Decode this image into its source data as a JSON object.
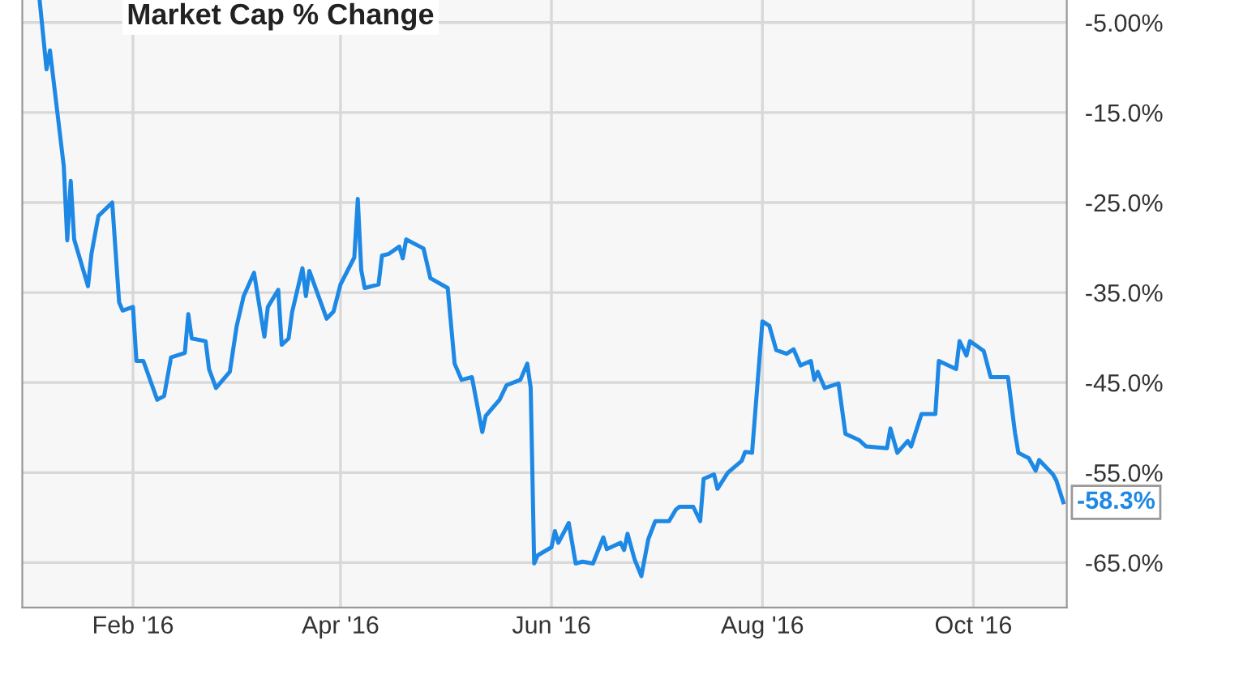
{
  "chart_data": {
    "type": "line",
    "title": "Market Cap % Change",
    "x": [
      "2016-01-05",
      "2016-01-06",
      "2016-01-07",
      "2016-01-08",
      "2016-01-12",
      "2016-01-13",
      "2016-01-14",
      "2016-01-15",
      "2016-01-19",
      "2016-01-20",
      "2016-01-22",
      "2016-01-26",
      "2016-01-28",
      "2016-01-29",
      "2016-02-01",
      "2016-02-02",
      "2016-02-04",
      "2016-02-08",
      "2016-02-10",
      "2016-02-12",
      "2016-02-16",
      "2016-02-17",
      "2016-02-18",
      "2016-02-22",
      "2016-02-23",
      "2016-02-25",
      "2016-02-29",
      "2016-03-02",
      "2016-03-04",
      "2016-03-07",
      "2016-03-10",
      "2016-03-11",
      "2016-03-14",
      "2016-03-15",
      "2016-03-17",
      "2016-03-18",
      "2016-03-21",
      "2016-03-22",
      "2016-03-23",
      "2016-03-28",
      "2016-03-30",
      "2016-04-01",
      "2016-04-05",
      "2016-04-06",
      "2016-04-07",
      "2016-04-08",
      "2016-04-12",
      "2016-04-13",
      "2016-04-15",
      "2016-04-18",
      "2016-04-19",
      "2016-04-20",
      "2016-04-25",
      "2016-04-27",
      "2016-05-02",
      "2016-05-04",
      "2016-05-06",
      "2016-05-09",
      "2016-05-12",
      "2016-05-13",
      "2016-05-17",
      "2016-05-19",
      "2016-05-23",
      "2016-05-25",
      "2016-05-26",
      "2016-05-27",
      "2016-05-28",
      "2016-06-01",
      "2016-06-02",
      "2016-06-03",
      "2016-06-06",
      "2016-06-08",
      "2016-06-10",
      "2016-06-13",
      "2016-06-16",
      "2016-06-17",
      "2016-06-21",
      "2016-06-22",
      "2016-06-23",
      "2016-06-25",
      "2016-06-27",
      "2016-06-29",
      "2016-07-01",
      "2016-07-05",
      "2016-07-07",
      "2016-07-08",
      "2016-07-12",
      "2016-07-14",
      "2016-07-15",
      "2016-07-18",
      "2016-07-19",
      "2016-07-22",
      "2016-07-26",
      "2016-07-27",
      "2016-07-29",
      "2016-08-01",
      "2016-08-03",
      "2016-08-05",
      "2016-08-08",
      "2016-08-10",
      "2016-08-12",
      "2016-08-15",
      "2016-08-16",
      "2016-08-17",
      "2016-08-19",
      "2016-08-23",
      "2016-08-25",
      "2016-08-29",
      "2016-08-31",
      "2016-09-06",
      "2016-09-07",
      "2016-09-09",
      "2016-09-12",
      "2016-09-13",
      "2016-09-16",
      "2016-09-20",
      "2016-09-21",
      "2016-09-26",
      "2016-09-27",
      "2016-09-29",
      "2016-09-30",
      "2016-10-04",
      "2016-10-06",
      "2016-10-11",
      "2016-10-13",
      "2016-10-14",
      "2016-10-17",
      "2016-10-19",
      "2016-10-20",
      "2016-10-24",
      "2016-10-25",
      "2016-10-27"
    ],
    "series": [
      {
        "color": "#1e88e5",
        "values": [
          -2.5,
          -6.3,
          -10.2,
          -8.1,
          -21.0,
          -29.2,
          -22.6,
          -29.1,
          -34.3,
          -30.7,
          -26.5,
          -25.0,
          -36.1,
          -37.0,
          -36.6,
          -42.6,
          -42.6,
          -46.9,
          -46.5,
          -42.2,
          -41.7,
          -37.4,
          -40.1,
          -40.4,
          -43.5,
          -45.6,
          -43.8,
          -38.7,
          -35.4,
          -32.8,
          -39.9,
          -36.6,
          -34.7,
          -40.8,
          -40.1,
          -37.2,
          -32.3,
          -35.4,
          -32.6,
          -37.9,
          -37.1,
          -34.1,
          -31.1,
          -24.6,
          -32.5,
          -34.5,
          -34.1,
          -30.9,
          -30.7,
          -29.9,
          -31.2,
          -29.1,
          -30.1,
          -33.4,
          -34.5,
          -42.9,
          -44.7,
          -44.4,
          -50.5,
          -48.7,
          -46.9,
          -45.3,
          -44.7,
          -42.9,
          -45.6,
          -65.1,
          -64.2,
          -63.3,
          -61.5,
          -62.8,
          -60.6,
          -65.1,
          -64.9,
          -65.1,
          -62.2,
          -63.5,
          -62.8,
          -63.6,
          -61.8,
          -64.6,
          -66.5,
          -62.4,
          -60.4,
          -60.4,
          -59.1,
          -58.8,
          -58.8,
          -60.4,
          -55.7,
          -55.2,
          -56.8,
          -55.0,
          -53.7,
          -52.7,
          -52.8,
          -38.2,
          -38.7,
          -41.4,
          -41.8,
          -41.3,
          -43.1,
          -42.6,
          -44.7,
          -43.8,
          -45.6,
          -45.1,
          -50.7,
          -51.4,
          -52.1,
          -52.3,
          -50.1,
          -52.8,
          -51.5,
          -52.1,
          -48.5,
          -48.5,
          -42.6,
          -43.5,
          -40.4,
          -42.0,
          -40.4,
          -41.5,
          -44.4,
          -44.4,
          -50.5,
          -52.8,
          -53.4,
          -54.8,
          -53.6,
          -55.2,
          -55.9,
          -58.3
        ],
        "value_labels": [
          null,
          null,
          null,
          null,
          null,
          null,
          null,
          null,
          null,
          null,
          null,
          null,
          null,
          null,
          null,
          null,
          null,
          null,
          null,
          null,
          null,
          null,
          null,
          null,
          null,
          null,
          null,
          null,
          null,
          null,
          null,
          null,
          null,
          null,
          null,
          null,
          null,
          null,
          null,
          null,
          null,
          null,
          null,
          null,
          null,
          null,
          null,
          null,
          null,
          null,
          null,
          null,
          null,
          null,
          null,
          null,
          null,
          null,
          null,
          null,
          null,
          null,
          null,
          null,
          null,
          null,
          null,
          null,
          null,
          null,
          null,
          null,
          null,
          null,
          null,
          null,
          null,
          null,
          null,
          null,
          null,
          null,
          null,
          null,
          null,
          null,
          null,
          null,
          null,
          null,
          null,
          null,
          null,
          null,
          null,
          null,
          null,
          null,
          null,
          null,
          null,
          null,
          null,
          null,
          null,
          null,
          null,
          null,
          null,
          null,
          null,
          null,
          null,
          null,
          null,
          null,
          null,
          null,
          null,
          null,
          null,
          null,
          null,
          null,
          null,
          null,
          null,
          null,
          null,
          null,
          null,
          "-58.3%"
        ]
      }
    ],
    "xlim": [
      "2015-12-31",
      "2016-10-28"
    ],
    "xticks": [
      {
        "value": "2016-02-01",
        "label": "Feb '16"
      },
      {
        "value": "2016-04-01",
        "label": "Apr '16"
      },
      {
        "value": "2016-06-01",
        "label": "Jun '16"
      },
      {
        "value": "2016-08-01",
        "label": "Aug '16"
      },
      {
        "value": "2016-10-01",
        "label": "Oct '16"
      }
    ],
    "ylim": [
      -70,
      -2.5
    ],
    "yticks": [
      {
        "value": -5,
        "label": "-5.00%"
      },
      {
        "value": -15,
        "label": "-15.0%"
      },
      {
        "value": -25,
        "label": "-25.0%"
      },
      {
        "value": -35,
        "label": "-35.0%"
      },
      {
        "value": -45,
        "label": "-45.0%"
      },
      {
        "value": -55,
        "label": "-55.0%"
      },
      {
        "value": -65,
        "label": "-65.0%"
      }
    ],
    "grid": true,
    "marker": "none",
    "line_style": "solid"
  }
}
